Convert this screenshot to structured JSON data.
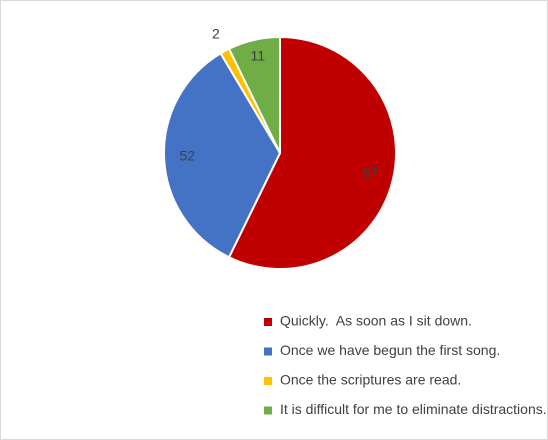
{
  "chart_data": {
    "type": "pie",
    "categories": [
      "Quickly.  As soon as I sit down.",
      "Once we have begun the first song.",
      "Once the scriptures are read.",
      "It is difficult for me to eliminate distractions."
    ],
    "values": [
      87,
      52,
      2,
      11
    ],
    "colors": [
      "#c00000",
      "#4472c4",
      "#ffc000",
      "#70ad47"
    ],
    "legend": "bottom"
  }
}
